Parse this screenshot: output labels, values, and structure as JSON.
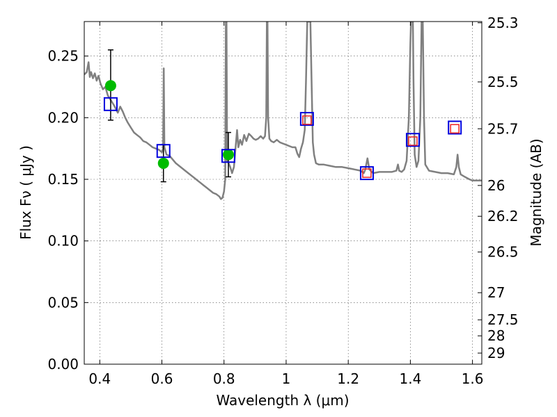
{
  "chart_data": {
    "type": "scatter",
    "xlabel": "Wavelength  λ (μm)",
    "ylabel": "Flux  Fν  ( μJy )",
    "ylabel_right": "Magnitude (AB)",
    "xlim": [
      0.35,
      1.63
    ],
    "ylim": [
      0.0,
      0.278
    ],
    "grid": true,
    "x_ticks": [
      0.4,
      0.6,
      0.8,
      1.0,
      1.2,
      1.4,
      1.6
    ],
    "x_tick_labels": [
      "0.4",
      "0.6",
      "0.8",
      "1",
      "1.2",
      "1.4",
      "1.6"
    ],
    "y_ticks": [
      0.0,
      0.05,
      0.1,
      0.15,
      0.2,
      0.25
    ],
    "y_tick_labels": [
      "0.00",
      "0.05",
      "0.10",
      "0.15",
      "0.20",
      "0.25"
    ],
    "mag_ticks": [
      {
        "label": "25.3",
        "flux": 0.277
      },
      {
        "label": "25.5",
        "flux": 0.229
      },
      {
        "label": "25.7",
        "flux": 0.191
      },
      {
        "label": "26",
        "flux": 0.145
      },
      {
        "label": "26.2",
        "flux": 0.12
      },
      {
        "label": "26.5",
        "flux": 0.091
      },
      {
        "label": "27",
        "flux": 0.058
      },
      {
        "label": "27.5",
        "flux": 0.036
      },
      {
        "label": "28",
        "flux": 0.023
      },
      {
        "label": "29",
        "flux": 0.009
      }
    ],
    "series": [
      {
        "style": "line",
        "color": "#808080",
        "points": [
          [
            0.35,
            0.235
          ],
          [
            0.358,
            0.237
          ],
          [
            0.364,
            0.245
          ],
          [
            0.368,
            0.233
          ],
          [
            0.372,
            0.237
          ],
          [
            0.378,
            0.232
          ],
          [
            0.384,
            0.236
          ],
          [
            0.39,
            0.23
          ],
          [
            0.396,
            0.234
          ],
          [
            0.402,
            0.228
          ],
          [
            0.41,
            0.223
          ],
          [
            0.418,
            0.225
          ],
          [
            0.426,
            0.218
          ],
          [
            0.436,
            0.214
          ],
          [
            0.446,
            0.21
          ],
          [
            0.452,
            0.207
          ],
          [
            0.458,
            0.204
          ],
          [
            0.466,
            0.209
          ],
          [
            0.474,
            0.205
          ],
          [
            0.482,
            0.2
          ],
          [
            0.49,
            0.196
          ],
          [
            0.5,
            0.192
          ],
          [
            0.51,
            0.188
          ],
          [
            0.52,
            0.186
          ],
          [
            0.53,
            0.184
          ],
          [
            0.54,
            0.181
          ],
          [
            0.55,
            0.18
          ],
          [
            0.56,
            0.178
          ],
          [
            0.57,
            0.176
          ],
          [
            0.58,
            0.175
          ],
          [
            0.59,
            0.174
          ],
          [
            0.6,
            0.172
          ],
          [
            0.604,
            0.175
          ],
          [
            0.606,
            0.24
          ],
          [
            0.608,
            0.176
          ],
          [
            0.615,
            0.17
          ],
          [
            0.625,
            0.169
          ],
          [
            0.635,
            0.166
          ],
          [
            0.645,
            0.163
          ],
          [
            0.655,
            0.161
          ],
          [
            0.665,
            0.159
          ],
          [
            0.675,
            0.157
          ],
          [
            0.685,
            0.155
          ],
          [
            0.695,
            0.153
          ],
          [
            0.705,
            0.151
          ],
          [
            0.715,
            0.149
          ],
          [
            0.725,
            0.147
          ],
          [
            0.735,
            0.145
          ],
          [
            0.745,
            0.143
          ],
          [
            0.755,
            0.141
          ],
          [
            0.765,
            0.139
          ],
          [
            0.775,
            0.138
          ],
          [
            0.785,
            0.136
          ],
          [
            0.79,
            0.134
          ],
          [
            0.795,
            0.135
          ],
          [
            0.8,
            0.14
          ],
          [
            0.804,
            0.15
          ],
          [
            0.806,
            0.278
          ],
          [
            0.808,
            0.278
          ],
          [
            0.81,
            0.165
          ],
          [
            0.815,
            0.163
          ],
          [
            0.82,
            0.16
          ],
          [
            0.826,
            0.155
          ],
          [
            0.832,
            0.16
          ],
          [
            0.838,
            0.178
          ],
          [
            0.842,
            0.19
          ],
          [
            0.846,
            0.176
          ],
          [
            0.852,
            0.182
          ],
          [
            0.858,
            0.178
          ],
          [
            0.865,
            0.186
          ],
          [
            0.872,
            0.181
          ],
          [
            0.88,
            0.187
          ],
          [
            0.888,
            0.185
          ],
          [
            0.895,
            0.183
          ],
          [
            0.902,
            0.182
          ],
          [
            0.91,
            0.183
          ],
          [
            0.918,
            0.185
          ],
          [
            0.926,
            0.183
          ],
          [
            0.932,
            0.185
          ],
          [
            0.936,
            0.2
          ],
          [
            0.938,
            0.278
          ],
          [
            0.94,
            0.278
          ],
          [
            0.942,
            0.2
          ],
          [
            0.946,
            0.183
          ],
          [
            0.952,
            0.181
          ],
          [
            0.96,
            0.18
          ],
          [
            0.97,
            0.182
          ],
          [
            0.98,
            0.18
          ],
          [
            0.99,
            0.179
          ],
          [
            1.0,
            0.178
          ],
          [
            1.01,
            0.177
          ],
          [
            1.02,
            0.176
          ],
          [
            1.03,
            0.176
          ],
          [
            1.036,
            0.171
          ],
          [
            1.042,
            0.168
          ],
          [
            1.048,
            0.175
          ],
          [
            1.054,
            0.18
          ],
          [
            1.06,
            0.19
          ],
          [
            1.064,
            0.23
          ],
          [
            1.068,
            0.278
          ],
          [
            1.078,
            0.278
          ],
          [
            1.082,
            0.23
          ],
          [
            1.086,
            0.18
          ],
          [
            1.09,
            0.17
          ],
          [
            1.096,
            0.163
          ],
          [
            1.105,
            0.162
          ],
          [
            1.12,
            0.162
          ],
          [
            1.14,
            0.161
          ],
          [
            1.16,
            0.16
          ],
          [
            1.18,
            0.16
          ],
          [
            1.2,
            0.159
          ],
          [
            1.22,
            0.158
          ],
          [
            1.24,
            0.157
          ],
          [
            1.25,
            0.155
          ],
          [
            1.255,
            0.158
          ],
          [
            1.262,
            0.167
          ],
          [
            1.268,
            0.158
          ],
          [
            1.28,
            0.155
          ],
          [
            1.3,
            0.156
          ],
          [
            1.32,
            0.156
          ],
          [
            1.34,
            0.156
          ],
          [
            1.355,
            0.157
          ],
          [
            1.36,
            0.162
          ],
          [
            1.364,
            0.157
          ],
          [
            1.372,
            0.156
          ],
          [
            1.38,
            0.158
          ],
          [
            1.388,
            0.165
          ],
          [
            1.395,
            0.2
          ],
          [
            1.4,
            0.26
          ],
          [
            1.402,
            0.278
          ],
          [
            1.408,
            0.278
          ],
          [
            1.41,
            0.23
          ],
          [
            1.414,
            0.17
          ],
          [
            1.42,
            0.16
          ],
          [
            1.426,
            0.165
          ],
          [
            1.432,
            0.2
          ],
          [
            1.436,
            0.278
          ],
          [
            1.44,
            0.278
          ],
          [
            1.444,
            0.2
          ],
          [
            1.448,
            0.162
          ],
          [
            1.46,
            0.157
          ],
          [
            1.48,
            0.156
          ],
          [
            1.5,
            0.155
          ],
          [
            1.52,
            0.155
          ],
          [
            1.54,
            0.154
          ],
          [
            1.548,
            0.16
          ],
          [
            1.552,
            0.17
          ],
          [
            1.556,
            0.16
          ],
          [
            1.562,
            0.154
          ],
          [
            1.575,
            0.152
          ],
          [
            1.59,
            0.15
          ],
          [
            1.6,
            0.149
          ],
          [
            1.63,
            0.149
          ]
        ]
      },
      {
        "style": "circle",
        "color": "#00bb00",
        "points": [
          [
            0.435,
            0.226
          ],
          [
            0.605,
            0.163
          ],
          [
            0.814,
            0.17
          ]
        ],
        "yerr": [
          [
            0.198,
            0.255
          ],
          [
            0.148,
            0.178
          ],
          [
            0.152,
            0.188
          ]
        ]
      },
      {
        "style": "square-blue",
        "color": "#0000dd",
        "points": [
          [
            0.435,
            0.211
          ],
          [
            0.605,
            0.173
          ],
          [
            0.814,
            0.169
          ],
          [
            1.067,
            0.199
          ],
          [
            1.26,
            0.155
          ],
          [
            1.408,
            0.182
          ],
          [
            1.543,
            0.192
          ]
        ]
      },
      {
        "style": "square-red",
        "color": "#ee2222",
        "points": [
          [
            1.067,
            0.198
          ],
          [
            1.26,
            0.155
          ],
          [
            1.408,
            0.181
          ],
          [
            1.543,
            0.191
          ]
        ]
      }
    ]
  }
}
